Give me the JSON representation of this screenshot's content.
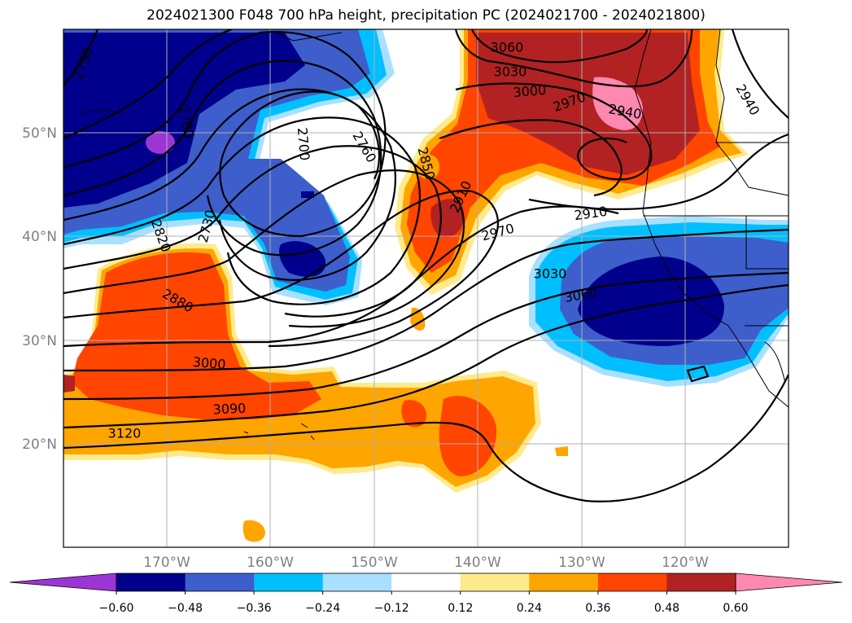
{
  "title": "2024021300 F048 700 hPa height, precipitation PC (2024021700 - 2024021800)",
  "lat_ticks": [
    "50°N",
    "40°N",
    "30°N",
    "20°N"
  ],
  "lon_ticks": [
    "170°W",
    "160°W",
    "150°W",
    "140°W",
    "130°W",
    "120°W"
  ],
  "contour_labels": [
    {
      "text": "2790",
      "rot": -70
    },
    {
      "text": "2790",
      "rot": 80
    },
    {
      "text": "2700",
      "rot": 85
    },
    {
      "text": "2760",
      "rot": 60
    },
    {
      "text": "2850",
      "rot": 75
    },
    {
      "text": "2910",
      "rot": -65
    },
    {
      "text": "2970",
      "rot": -15
    },
    {
      "text": "2730",
      "rot": -75
    },
    {
      "text": "2820",
      "rot": 70
    },
    {
      "text": "2880",
      "rot": 30
    },
    {
      "text": "3000",
      "rot": 5
    },
    {
      "text": "3090",
      "rot": -3
    },
    {
      "text": "3120",
      "rot": 0
    },
    {
      "text": "3030",
      "rot": 0
    },
    {
      "text": "3060",
      "rot": -10
    },
    {
      "text": "2910",
      "rot": -8
    },
    {
      "text": "2940",
      "rot": 60
    },
    {
      "text": "2940",
      "rot": 10
    },
    {
      "text": "3000",
      "rot": -5
    },
    {
      "text": "3030",
      "rot": 0
    },
    {
      "text": "3060",
      "rot": 0
    },
    {
      "text": "2970",
      "rot": -20
    }
  ],
  "colorbar": {
    "colors": [
      "#9b36d4",
      "#00008c",
      "#3d5ecb",
      "#00bfff",
      "#a8e0ff",
      "#ffffff",
      "#ffea8c",
      "#ffa500",
      "#ff4500",
      "#b22222",
      "#ff88b0"
    ],
    "ticks": [
      "−0.60",
      "−0.48",
      "−0.36",
      "−0.24",
      "−0.12",
      "0.12",
      "0.24",
      "0.36",
      "0.48",
      "0.60"
    ]
  }
}
